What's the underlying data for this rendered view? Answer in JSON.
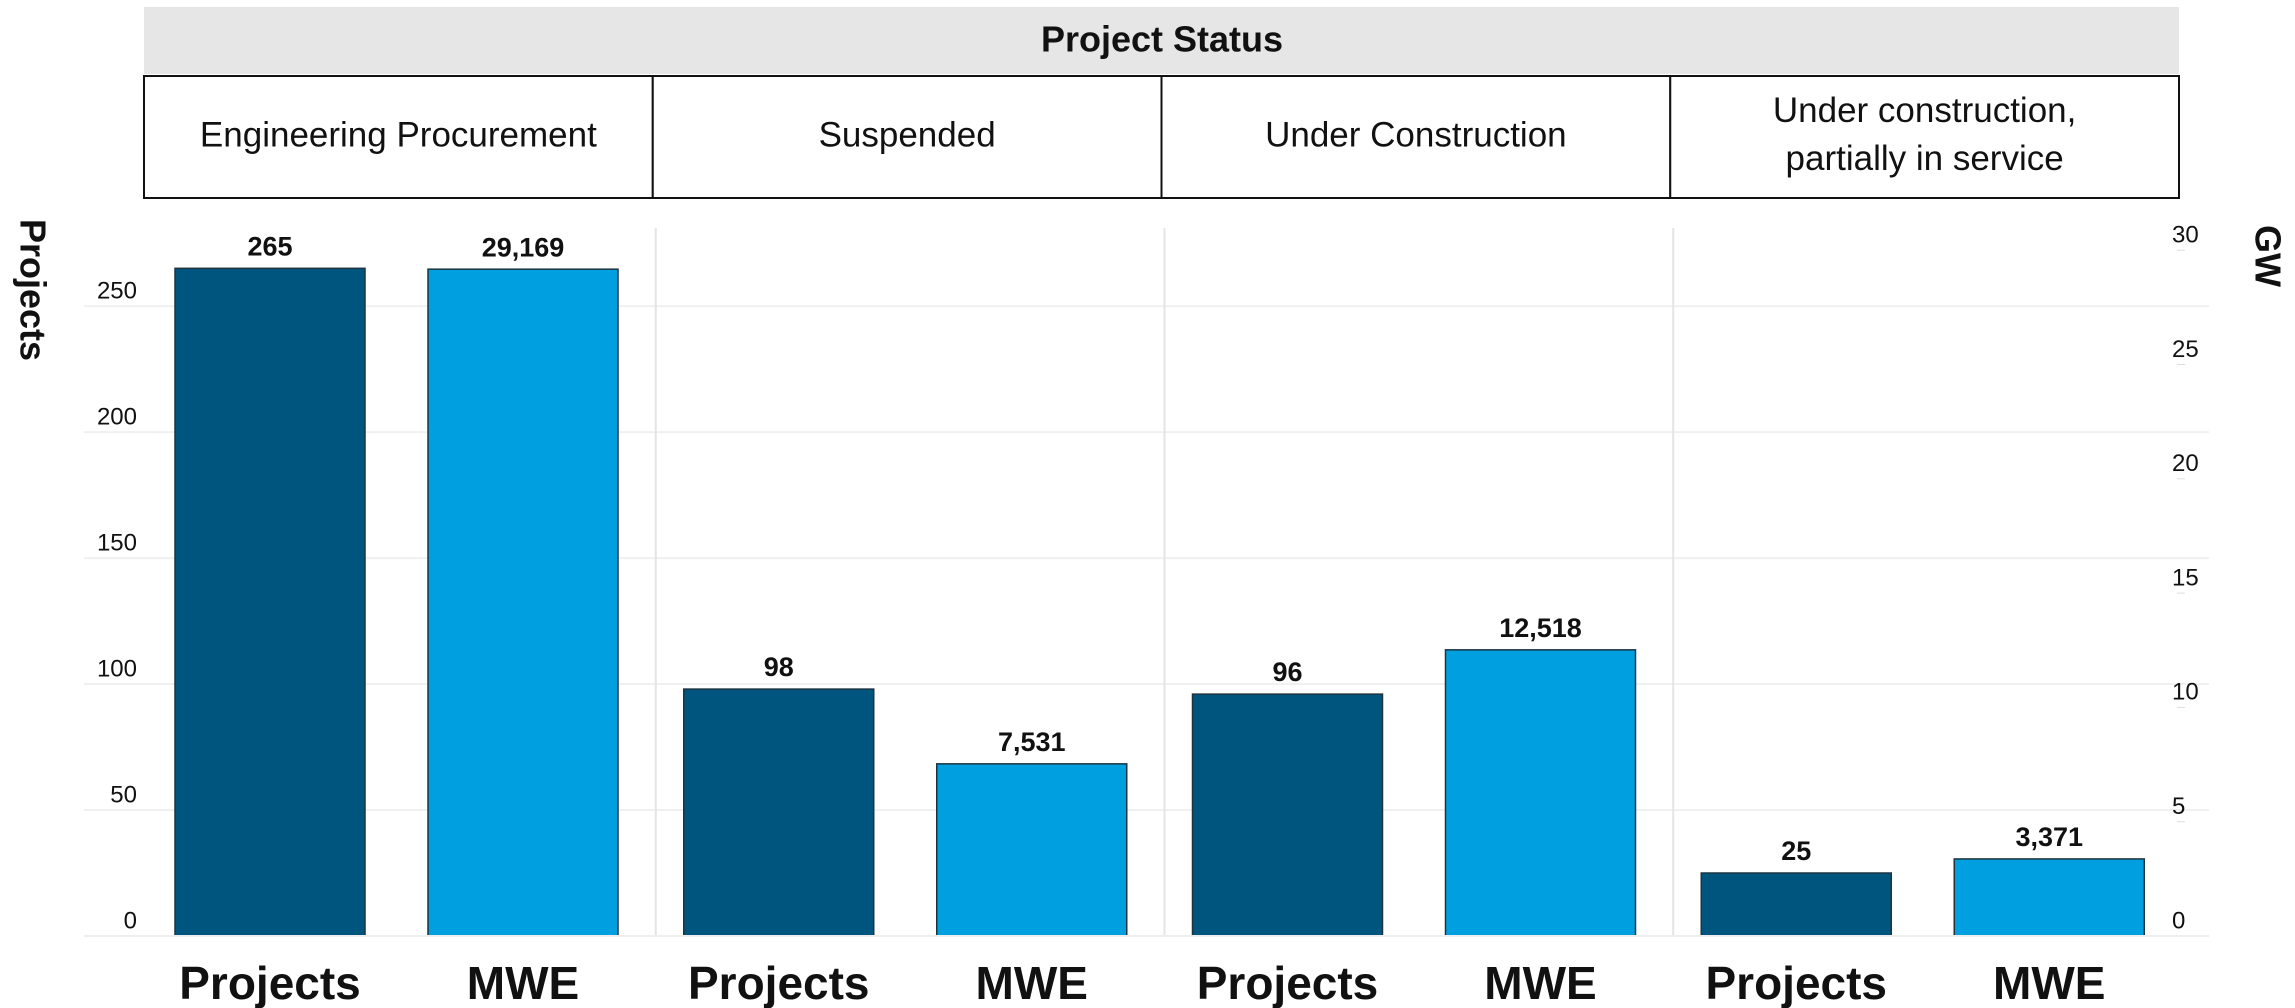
{
  "chart_data": {
    "type": "bar",
    "title": "Project Status",
    "groups": [
      "Engineering Procurement",
      "Suspended",
      "Under Construction",
      "Under construction,\npartially in service"
    ],
    "ylabel": "Projects",
    "y2label": "GW",
    "series": [
      {
        "name": "Projects",
        "color": "#00557f",
        "values": [
          265,
          98,
          96,
          25
        ]
      },
      {
        "name": "MWE",
        "color": "#009fe0",
        "axis": "y2",
        "values": [
          29.169,
          7.531,
          12.518,
          3.371
        ],
        "value_labels": [
          "29,169",
          "7,531",
          "12,518",
          "3,371"
        ]
      }
    ],
    "ylim": [
      0,
      281
    ],
    "yticks": [
      0,
      50,
      100,
      150,
      200,
      250
    ],
    "y2lim": [
      0,
      30.97
    ],
    "y2ticks": [
      0,
      5,
      10,
      15,
      20,
      25,
      30
    ],
    "grid": true
  }
}
